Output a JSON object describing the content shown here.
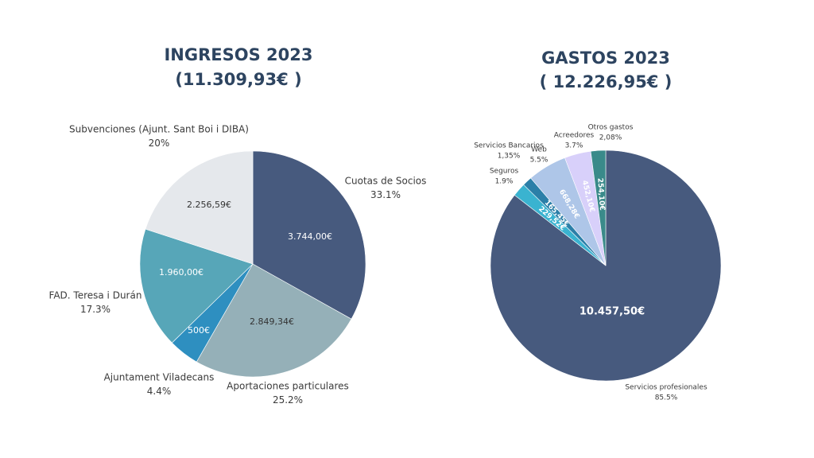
{
  "chart_data": [
    {
      "type": "pie",
      "title": "INGRESOS 2023",
      "subtitle": "(11.309,93€ )",
      "categories": [
        "Cuotas de Socios",
        "Aportaciones particulares",
        "Ajuntament Viladecans",
        "FAD. Teresa i Durán",
        "Subvenciones (Ajunt. Sant Boi i DIBA)"
      ],
      "values": [
        33.1,
        25.2,
        4.4,
        17.3,
        20
      ],
      "value_labels": [
        "33.1%",
        "25.2%",
        "4.4%",
        "17.3%",
        "20%"
      ],
      "amounts": [
        3744,
        2849.34,
        500,
        1960,
        2256.59
      ],
      "amount_labels": [
        "3.744,00€",
        "2.849,34€",
        "500€",
        "1.960,00€",
        "2.256,59€"
      ],
      "colors": [
        "#475a7e",
        "#95b0b8",
        "#2e8fc0",
        "#57a6b8",
        "#e5e8ec"
      ]
    },
    {
      "type": "pie",
      "title": "GASTOS 2023",
      "subtitle": "( 12.226,95€ )",
      "categories": [
        "Servicios profesionales",
        "Seguros",
        "Servicios Bancarios",
        "Web",
        "Acreedores",
        "Otros gastos"
      ],
      "values": [
        85.5,
        1.9,
        1.35,
        5.5,
        3.7,
        2.08
      ],
      "value_labels": [
        "85.5%",
        "1.9%",
        "1,35%",
        "5.5%",
        "3.7%",
        "2,08%"
      ],
      "amounts": [
        10457.5,
        229.52,
        165.45,
        668.28,
        452.1,
        254.1
      ],
      "amount_labels": [
        "10.457,50€",
        "229,52€",
        "165,45€",
        "668,28€",
        "452,10€",
        "254,10€"
      ],
      "colors": [
        "#475a7e",
        "#3ab3d0",
        "#2b7fa8",
        "#aec6e8",
        "#d8d0fa",
        "#3a8a8a"
      ]
    }
  ]
}
